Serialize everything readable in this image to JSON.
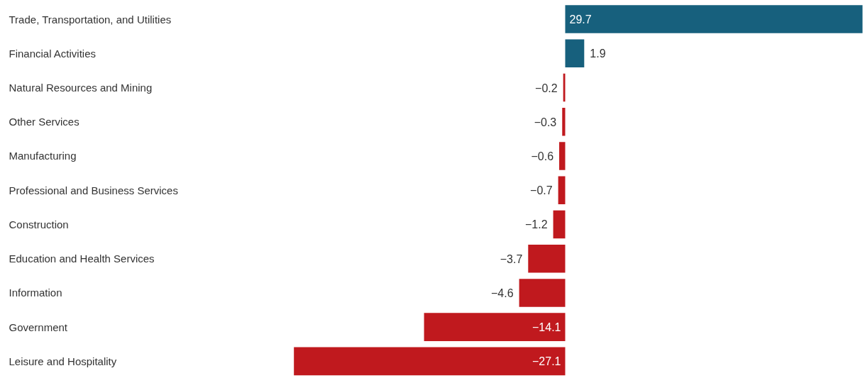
{
  "chart_data": {
    "type": "bar",
    "orientation": "horizontal",
    "categories": [
      "Trade, Transportation, and Utilities",
      "Financial Activities",
      "Natural Resources and Mining",
      "Other Services",
      "Manufacturing",
      "Professional and Business Services",
      "Construction",
      "Education and Health Services",
      "Information",
      "Government",
      "Leisure and Hospitality"
    ],
    "values": [
      29.7,
      1.9,
      -0.2,
      -0.3,
      -0.6,
      -0.7,
      -1.2,
      -3.7,
      -4.6,
      -14.1,
      -27.1
    ],
    "colors": [
      "#17607d",
      "#17607d",
      "#c0191e",
      "#c0191e",
      "#c0191e",
      "#c0191e",
      "#c0191e",
      "#c0191e",
      "#c0191e",
      "#c0191e",
      "#c0191e"
    ],
    "data_labels": true
  }
}
